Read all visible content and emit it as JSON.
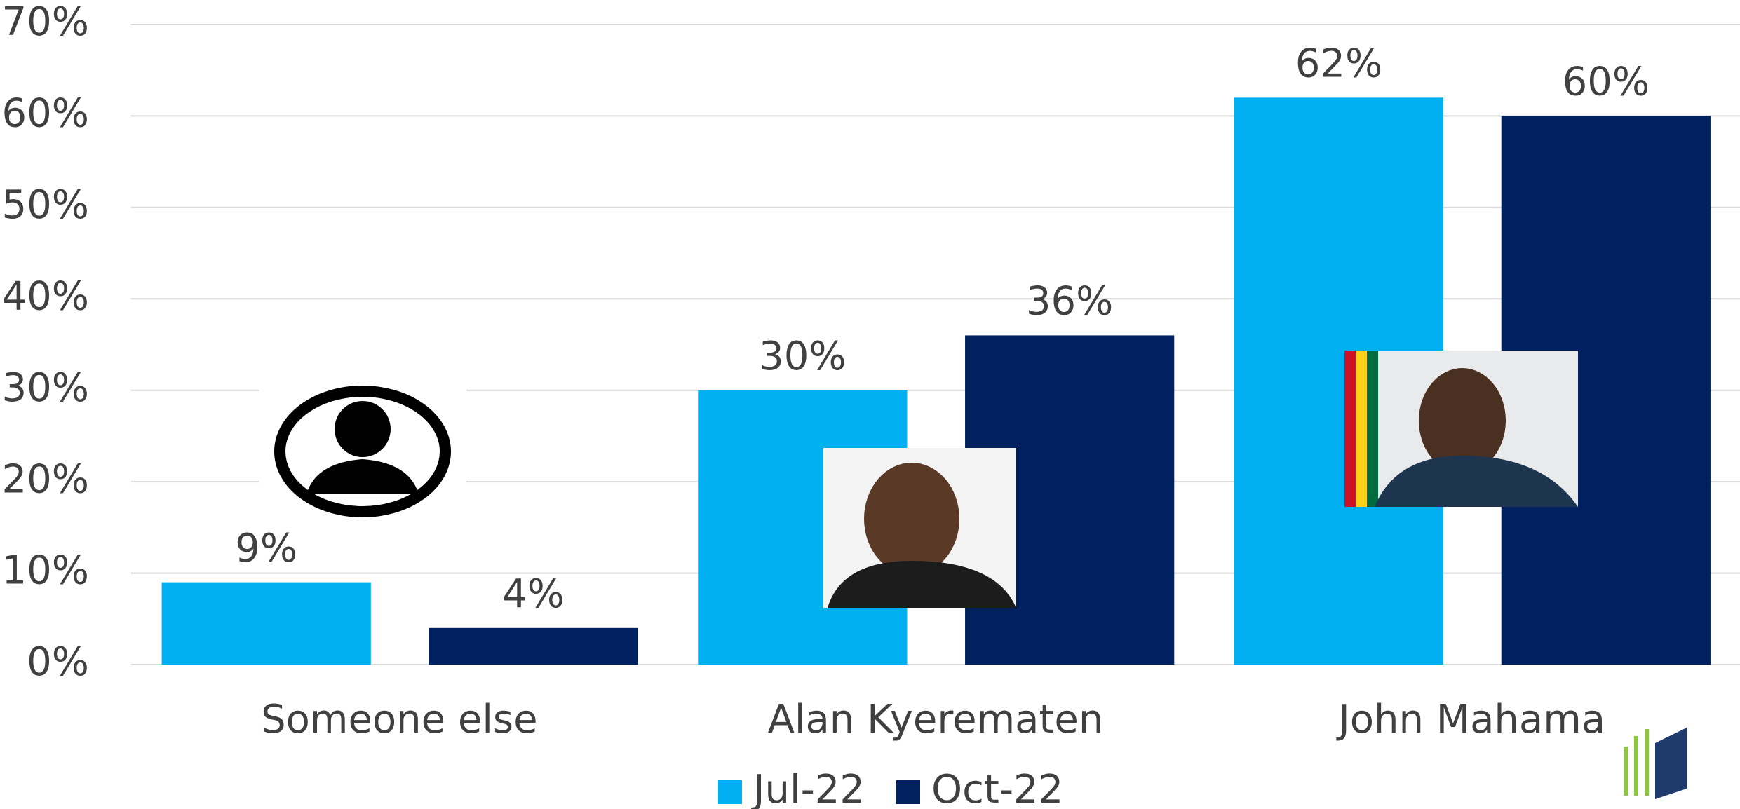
{
  "chart_data": {
    "type": "bar",
    "categories": [
      "Someone else",
      "Alan Kyerematen",
      "John Mahama"
    ],
    "series": [
      {
        "name": "Jul-22",
        "color": "#00b0f0",
        "values": [
          9,
          30,
          62
        ],
        "value_labels": [
          "9%",
          "30%",
          "62%"
        ]
      },
      {
        "name": "Oct-22",
        "color": "#002060",
        "values": [
          4,
          36,
          60
        ],
        "value_labels": [
          "4%",
          "36%",
          "60%"
        ]
      }
    ],
    "ylim": [
      0,
      70
    ],
    "yticks": [
      {
        "value": 0,
        "label": "0%"
      },
      {
        "value": 10,
        "label": "10%"
      },
      {
        "value": 20,
        "label": "20%"
      },
      {
        "value": 30,
        "label": "30%"
      },
      {
        "value": 40,
        "label": "40%"
      },
      {
        "value": 50,
        "label": "50%"
      },
      {
        "value": 60,
        "label": "60%"
      },
      {
        "value": 70,
        "label": "70%"
      }
    ],
    "grid": true,
    "legend": "bottom"
  }
}
